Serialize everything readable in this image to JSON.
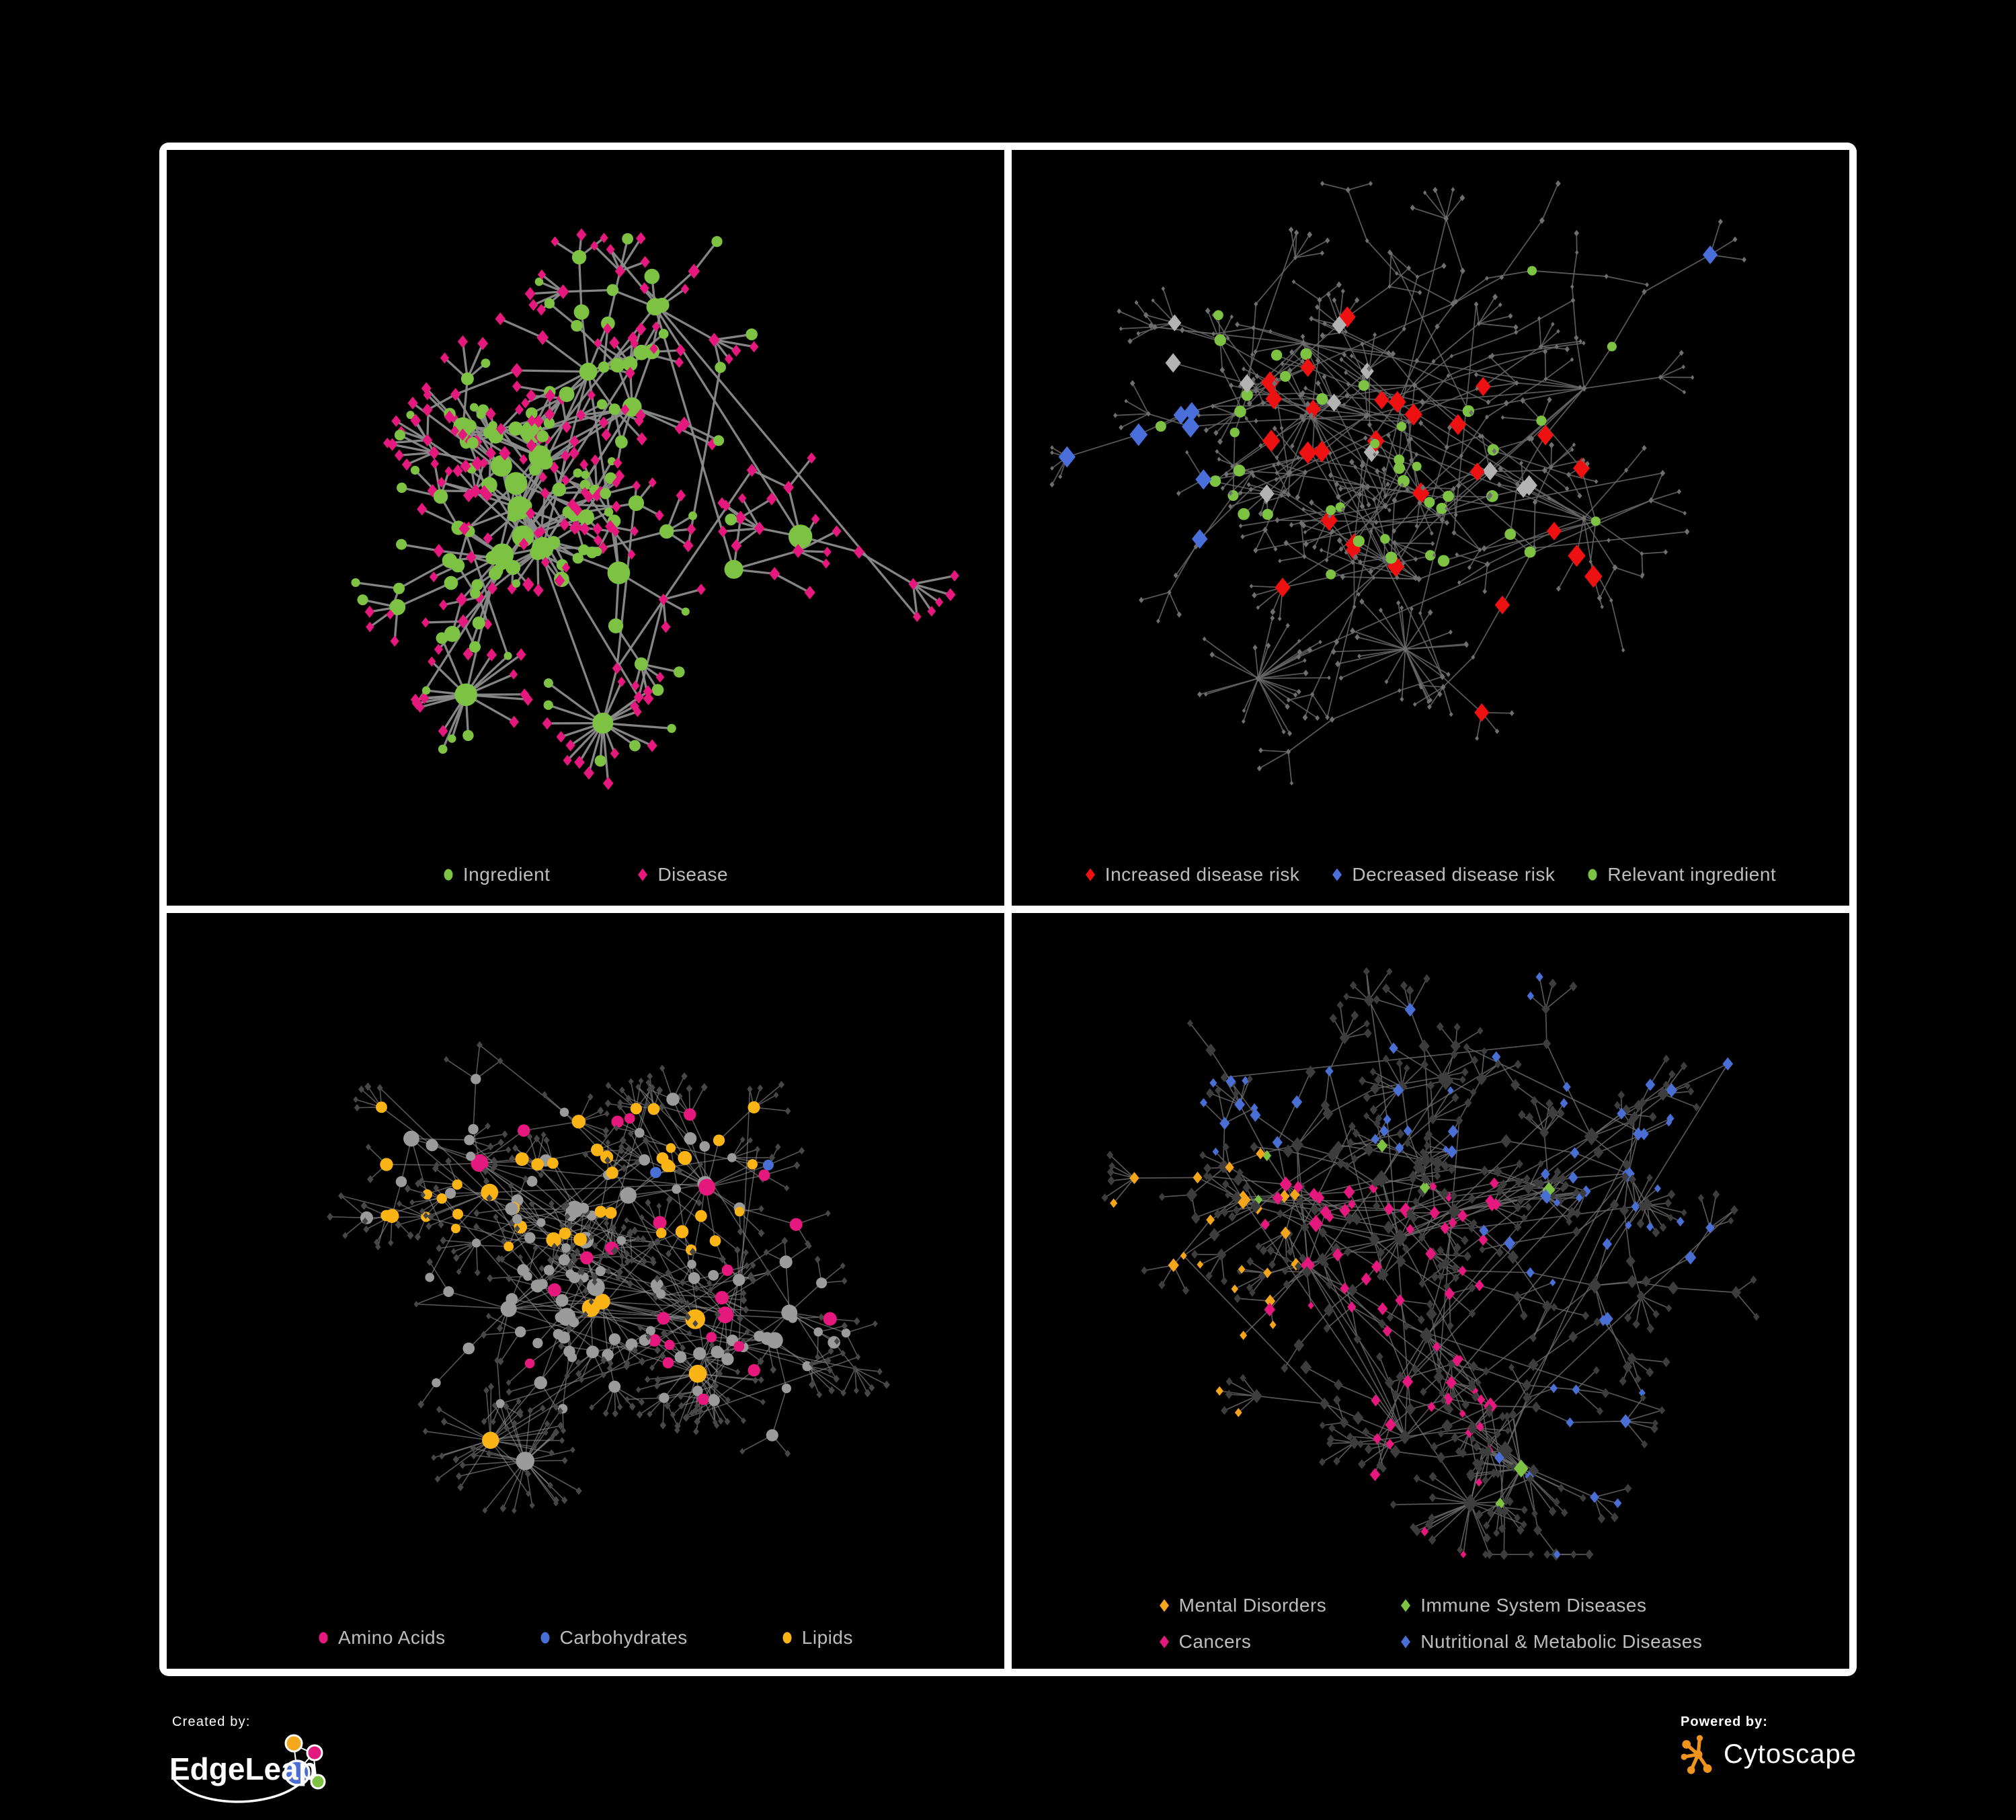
{
  "page": {
    "background": "#000000",
    "frame_color": "#ffffff"
  },
  "panels": [
    {
      "id": "ingredient-disease",
      "legend": {
        "items": [
          {
            "label": "Ingredient",
            "shape": "circle",
            "color": "#7dc242"
          },
          {
            "label": "Disease",
            "shape": "diamond",
            "color": "#e5187d"
          }
        ]
      },
      "palette": {
        "ingredient": "#7dc242",
        "disease": "#e5187d",
        "edge": "#8c8c8c"
      },
      "network": {
        "seed": 11,
        "hubs": 15,
        "branchMin": 3,
        "branchMax": 8,
        "chainMax": 2,
        "stepMin": 55,
        "stepMax": 110,
        "leafMax": 5,
        "leafStep": 52,
        "starbursts": 2,
        "extraEdges": 10,
        "edgeWidth": 3.3,
        "edgeOpacity": 0.95
      }
    },
    {
      "id": "disease-risk",
      "legend": {
        "items": [
          {
            "label": "Increased disease risk",
            "shape": "diamond",
            "color": "#ee1111"
          },
          {
            "label": "Decreased disease risk",
            "shape": "diamond",
            "color": "#4a6fdb"
          },
          {
            "label": "Relevant ingredient",
            "shape": "circle",
            "color": "#7dc242"
          }
        ]
      },
      "palette": {
        "node": "#6f6f6f",
        "edge": "#666666",
        "increased": "#ee1111",
        "decreased": "#4a6fdb",
        "neutral": "#b3b3b3",
        "ingredient": "#7dc242"
      },
      "overlays": {
        "increased": 30,
        "decreased": 9,
        "neutral": 11,
        "ingredient": 42
      },
      "network": {
        "seed": 29,
        "hubs": 22,
        "branchMin": 3,
        "branchMax": 7,
        "chainMax": 3,
        "stepMin": 60,
        "stepMax": 120,
        "leafMax": 5,
        "leafStep": 48,
        "starbursts": 2,
        "extraEdges": 14,
        "edgeWidth": 1.8,
        "edgeOpacity": 0.85
      }
    },
    {
      "id": "metabolite-classes",
      "legend": {
        "items": [
          {
            "label": "Amino Acids",
            "shape": "circle",
            "color": "#e5187d"
          },
          {
            "label": "Carbohydrates",
            "shape": "circle",
            "color": "#4a6fd4"
          },
          {
            "label": "Lipids",
            "shape": "circle",
            "color": "#fbb415"
          }
        ]
      },
      "palette": {
        "edge": "#8f8f8f",
        "leaf": "#474747",
        "gray": "#9b9b9b",
        "amino": "#e5187d",
        "carb": "#4a6fd4",
        "lipid": "#fbb415"
      },
      "network": {
        "seed": 41,
        "hubs": 18,
        "branchMin": 4,
        "branchMax": 8,
        "chainMax": 2,
        "stepMin": 55,
        "stepMax": 105,
        "leafMax": 6,
        "leafStep": 46,
        "starbursts": 3,
        "extraEdges": 30,
        "edgeWidth": 1.6,
        "edgeOpacity": 0.6
      }
    },
    {
      "id": "disease-categories",
      "legend": {
        "items": [
          {
            "label": "Mental Disorders",
            "shape": "diamond",
            "color": "#f4a51c"
          },
          {
            "label": "Immune System Diseases",
            "shape": "diamond",
            "color": "#7dc242"
          },
          {
            "label": "Cancers",
            "shape": "diamond",
            "color": "#e5187d"
          },
          {
            "label": "Nutritional & Metabolic Diseases",
            "shape": "diamond",
            "color": "#4a6fd4"
          }
        ]
      },
      "palette": {
        "edge": "#6b6b6b",
        "base": "#3d3d3d",
        "mental": "#f4a51c",
        "immune": "#7dc242",
        "cancer": "#e5187d",
        "nutritional": "#4a6fd4"
      },
      "network": {
        "seed": 53,
        "hubs": 18,
        "branchMin": 4,
        "branchMax": 8,
        "chainMax": 3,
        "stepMin": 55,
        "stepMax": 105,
        "leafMax": 6,
        "leafStep": 46,
        "starbursts": 2,
        "extraEdges": 24,
        "edgeWidth": 1.7,
        "edgeOpacity": 0.8
      }
    }
  ],
  "footer": {
    "created_by": {
      "label": "Created by:",
      "brand": "EdgeLeap",
      "colors": {
        "blue": "#4a6fd4",
        "orange": "#f5a81c",
        "pink": "#e5187d",
        "green": "#7dc242",
        "line": "#ffffff"
      }
    },
    "powered_by": {
      "label": "Powered by:",
      "brand": "Cytoscape",
      "color": "#f0941f"
    }
  }
}
